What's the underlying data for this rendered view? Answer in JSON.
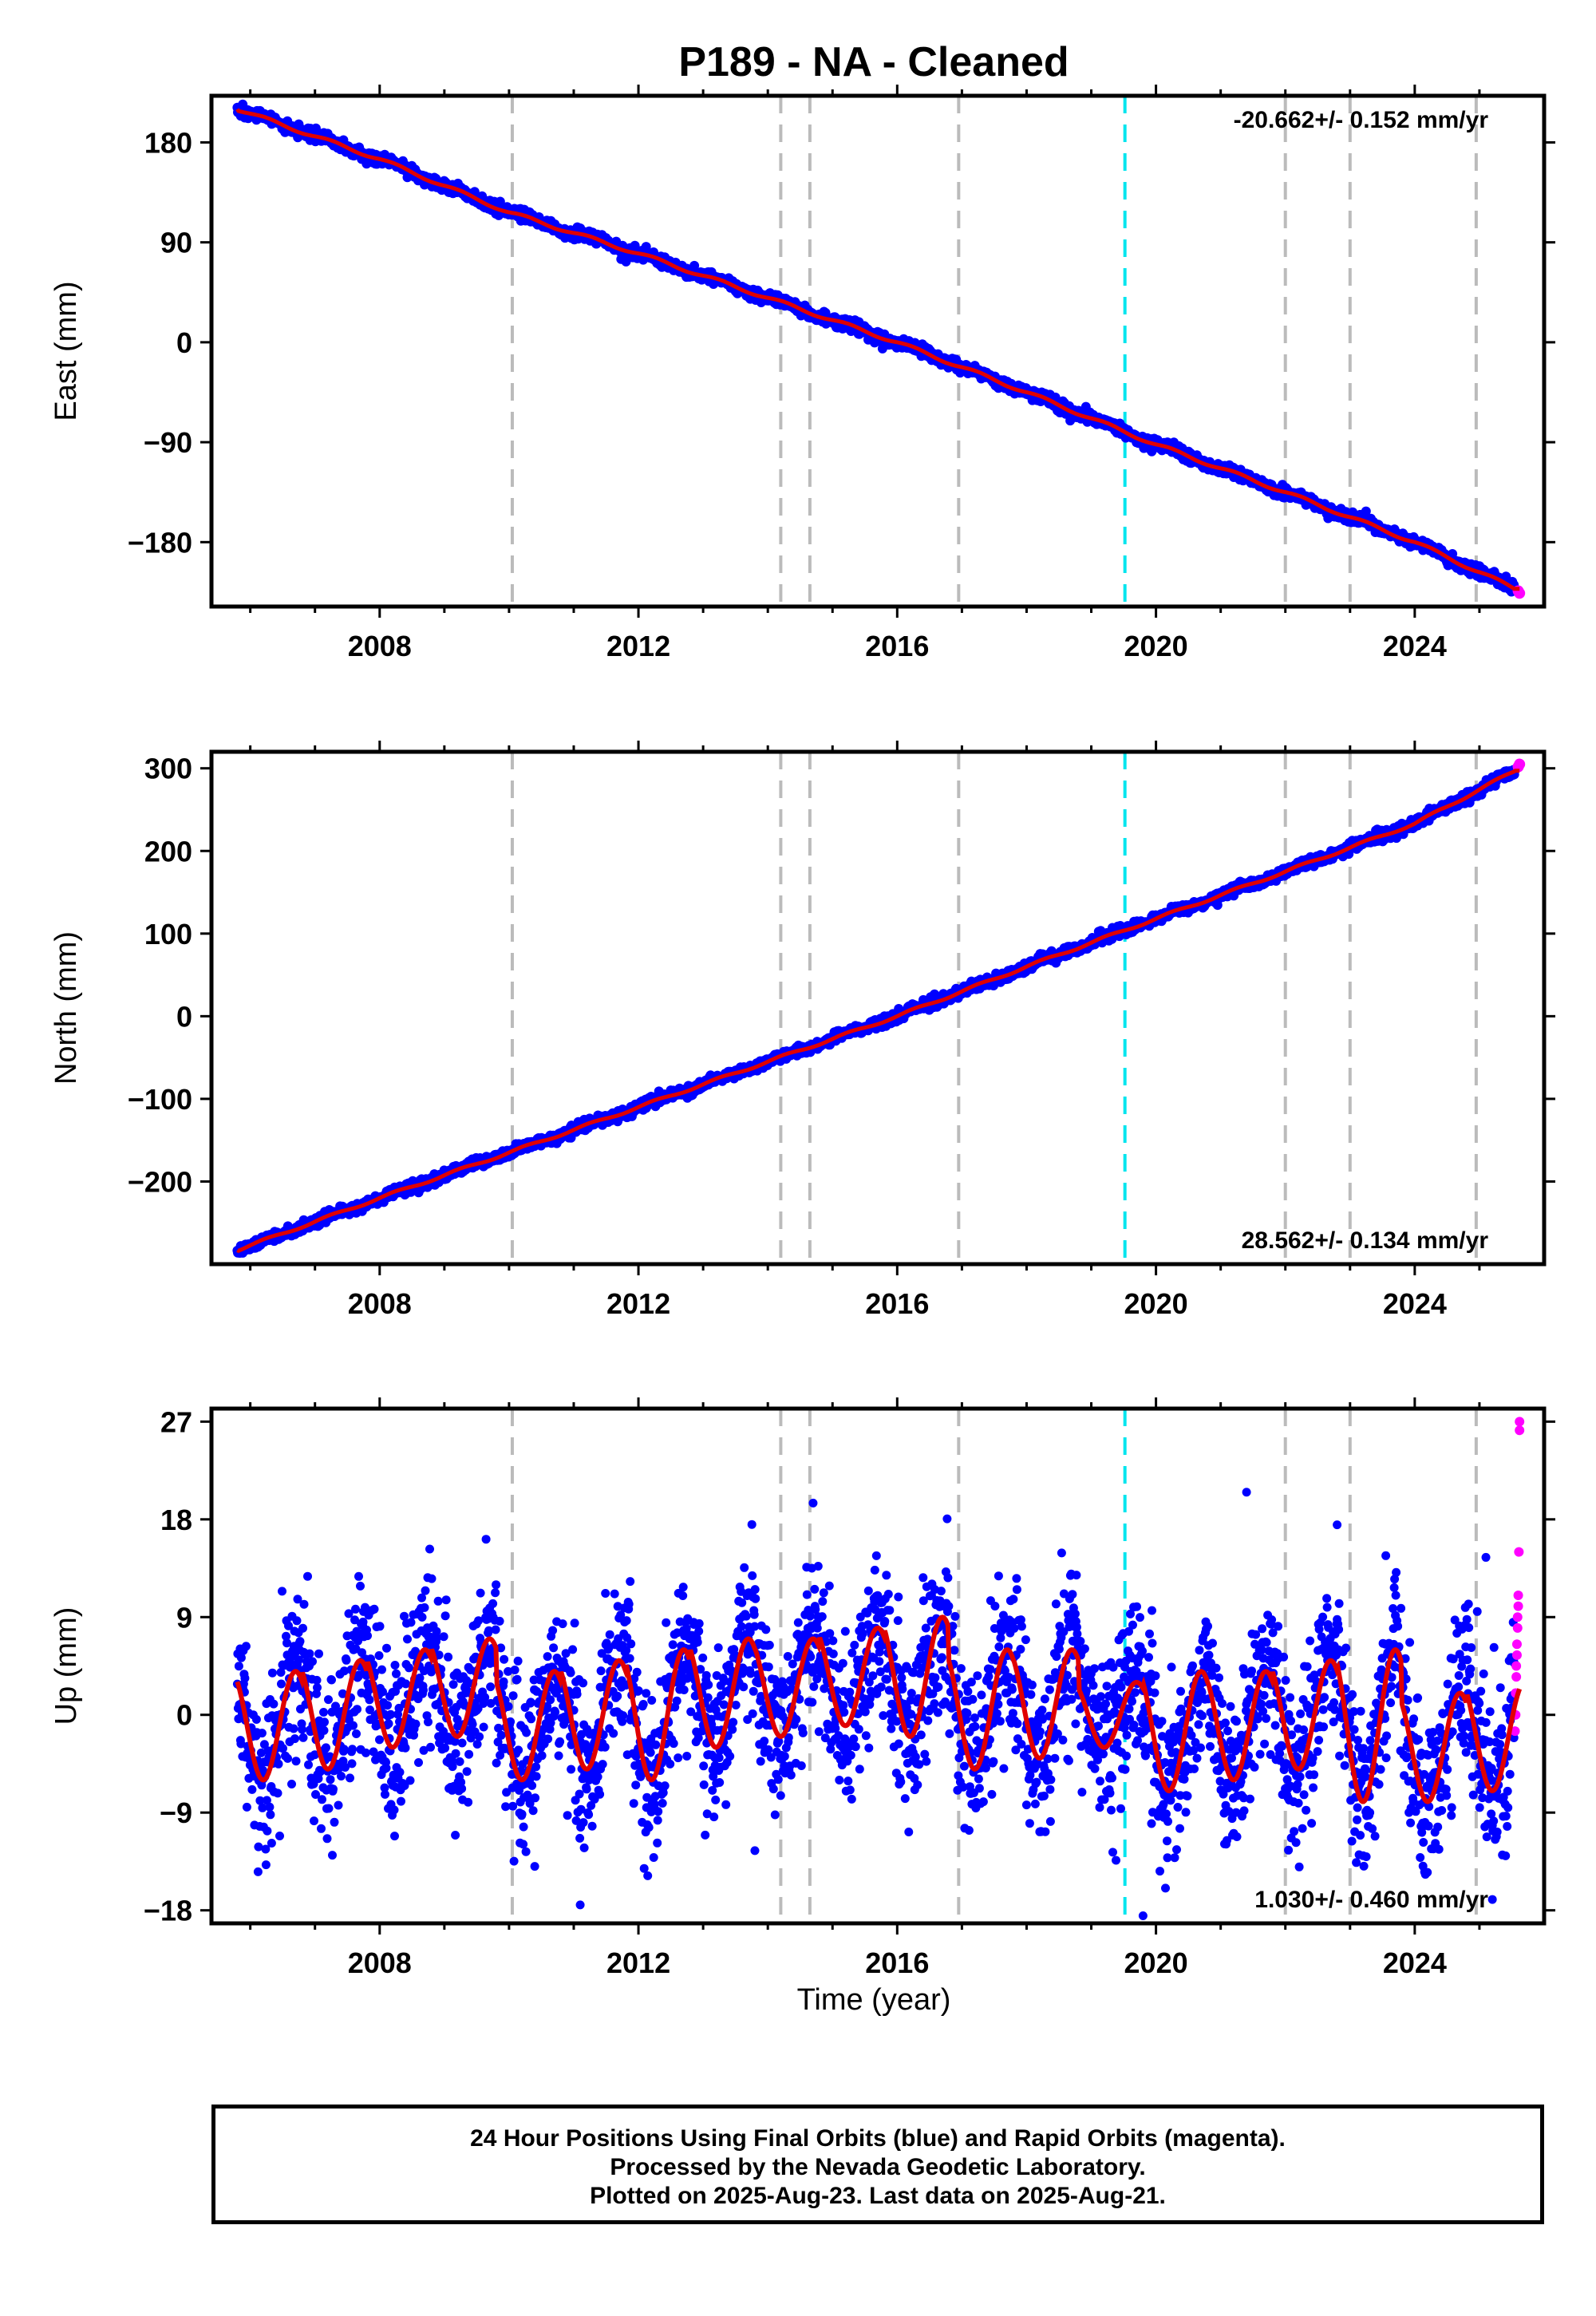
{
  "figure": {
    "title": "P189  - NA - Cleaned",
    "xlabel": "Time (year)",
    "colors": {
      "final_orbits": "#0000ff",
      "rapid_orbits": "#ff00ff",
      "model": "#e00000",
      "event_line": "#bbbbbb",
      "antenna_change_line": "#00e5ee"
    },
    "footer": [
      "24 Hour Positions Using Final Orbits (blue) and Rapid Orbits (magenta).",
      "Processed by the Nevada Geodetic Laboratory.",
      "Plotted on 2025-Aug-23. Last data on 2025-Aug-21."
    ]
  },
  "chart_data": [
    {
      "type": "scatter",
      "component": "East",
      "ylabel": "East (mm)",
      "rate_label": "-20.662+/- 0.152 mm/yr",
      "rate_position": "top-right",
      "xlim": [
        2005.4,
        2026.0
      ],
      "ylim": [
        -238,
        222
      ],
      "xticks": [
        2008,
        2012,
        2016,
        2020,
        2024
      ],
      "yticks": [
        180,
        90,
        0,
        -90,
        -180
      ],
      "ytick_labels": [
        "180",
        "90",
        "0",
        "−90",
        "−180"
      ],
      "start_year": 2005.8,
      "end_year": 2025.62,
      "start_value": 210,
      "end_value": -226,
      "scatter_mm": 2.5,
      "series": [
        {
          "name": "Final Orbits",
          "color": "#0000ff",
          "x": [
            2005.8,
            2008,
            2010,
            2012,
            2014,
            2016,
            2018,
            2020,
            2022,
            2024,
            2025.55
          ],
          "y": [
            210,
            165,
            117,
            80,
            40,
            0,
            -45,
            -92,
            -135,
            -180,
            -222
          ]
        },
        {
          "name": "Rapid Orbits",
          "color": "#ff00ff",
          "x": [
            2025.6,
            2025.62
          ],
          "y": [
            -224,
            -226
          ]
        }
      ]
    },
    {
      "type": "scatter",
      "component": "North",
      "ylabel": "North (mm)",
      "rate_label": "28.562+/- 0.134 mm/yr",
      "rate_position": "bottom-right",
      "xlim": [
        2005.4,
        2026.0
      ],
      "ylim": [
        -300,
        320
      ],
      "xticks": [
        2008,
        2012,
        2016,
        2020,
        2024
      ],
      "yticks": [
        300,
        200,
        100,
        0,
        -100,
        -200
      ],
      "ytick_labels": [
        "300",
        "200",
        "100",
        "0",
        "−100",
        "−200"
      ],
      "start_year": 2005.8,
      "end_year": 2025.62,
      "start_value": -283,
      "end_value": 305,
      "scatter_mm": 3,
      "series": [
        {
          "name": "Final Orbits",
          "color": "#0000ff",
          "x": [
            2005.8,
            2008,
            2010,
            2012,
            2014,
            2016,
            2018,
            2020,
            2022,
            2024,
            2025.55
          ],
          "y": [
            -283,
            -220,
            -165,
            -110,
            -55,
            0,
            60,
            118,
            175,
            233,
            297
          ]
        },
        {
          "name": "Rapid Orbits",
          "color": "#ff00ff",
          "x": [
            2025.6,
            2025.62
          ],
          "y": [
            302,
            305
          ]
        }
      ]
    },
    {
      "type": "scatter",
      "component": "Up",
      "ylabel": "Up (mm)",
      "rate_label": "1.030+/- 0.460 mm/yr",
      "rate_position": "bottom-right",
      "xlim": [
        2005.4,
        2026.0
      ],
      "ylim": [
        -19.2,
        28.2
      ],
      "xticks": [
        2008,
        2012,
        2016,
        2020,
        2024
      ],
      "yticks": [
        27,
        18,
        9,
        0,
        -9,
        -18
      ],
      "ytick_labels": [
        "27",
        "18",
        "9",
        "0",
        "−9",
        "−18"
      ],
      "start_year": 2005.8,
      "end_year": 2025.62,
      "seasonal_model": {
        "period_years": 1.0,
        "cycle_minima_mm": [
          -6,
          -5,
          -3,
          -2,
          -6,
          -5,
          -6,
          -3,
          -2,
          -1,
          -2,
          -5,
          -4,
          -3,
          -7,
          -6,
          -5,
          -8,
          -8,
          -7
        ],
        "cycle_maxima_mm": [
          4,
          5,
          6,
          7,
          4,
          5,
          6,
          7,
          7,
          8,
          9,
          6,
          6,
          3,
          4,
          4,
          5,
          6,
          2,
          3
        ]
      },
      "scatter_mm": 3.8,
      "outliers": [
        {
          "x": 2021.4,
          "y": 20.5
        },
        {
          "x": 2014.7,
          "y": 19.5
        },
        {
          "x": 2011.1,
          "y": -17.5
        },
        {
          "x": 2019.8,
          "y": -18.5
        },
        {
          "x": 2013.8,
          "y": -12.5
        },
        {
          "x": 2022.8,
          "y": 17.5
        },
        {
          "x": 2025.1,
          "y": 14.5
        },
        {
          "x": 2025.2,
          "y": -17.0
        }
      ],
      "rapid_orbit_points": [
        {
          "x": 2025.62,
          "y": 27
        },
        {
          "x": 2025.62,
          "y": 26.2
        },
        {
          "x": 2025.61,
          "y": 15
        },
        {
          "x": 2025.6,
          "y": 11
        },
        {
          "x": 2025.6,
          "y": 10
        },
        {
          "x": 2025.59,
          "y": 9
        },
        {
          "x": 2025.59,
          "y": 8
        },
        {
          "x": 2025.58,
          "y": 6.5
        },
        {
          "x": 2025.58,
          "y": 5.5
        },
        {
          "x": 2025.57,
          "y": 4.5
        },
        {
          "x": 2025.57,
          "y": 3.5
        },
        {
          "x": 2025.56,
          "y": 2
        },
        {
          "x": 2025.56,
          "y": 0
        },
        {
          "x": 2025.55,
          "y": -1.5
        }
      ]
    }
  ],
  "event_lines": {
    "equipment": [
      2010.05,
      2014.2,
      2014.65,
      2016.95,
      2022.0,
      2023.0,
      2024.95
    ],
    "antenna": [
      2019.52
    ]
  }
}
